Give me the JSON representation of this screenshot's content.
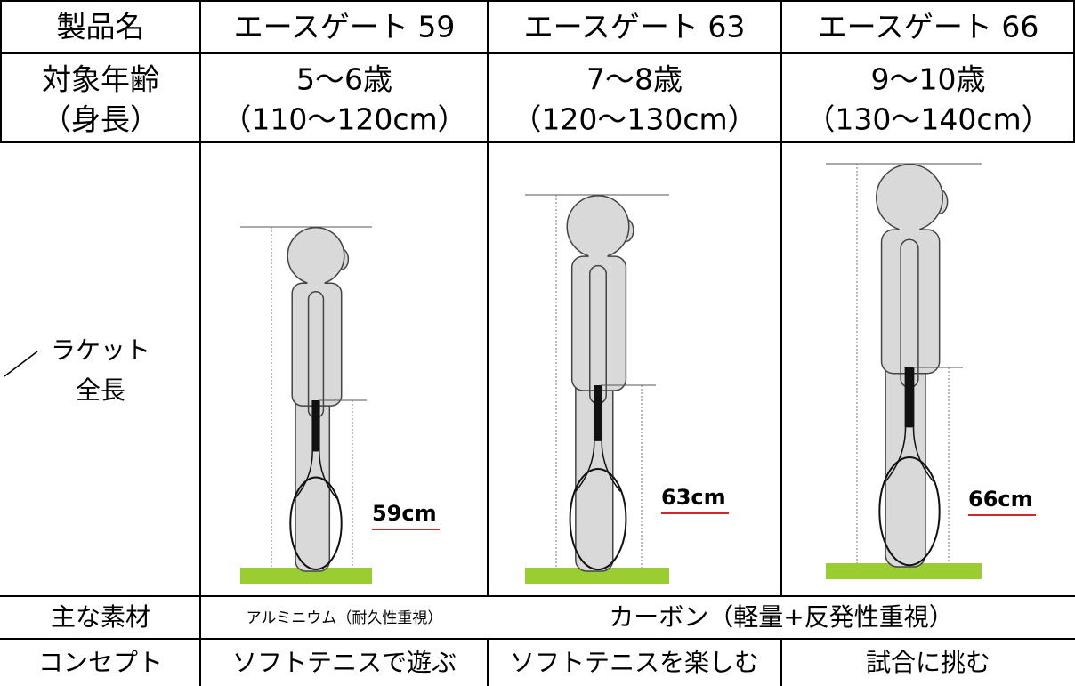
{
  "header": {
    "label": "製品名",
    "products": [
      "エースゲート 59",
      "エースゲート 63",
      "エースゲート 66"
    ]
  },
  "target": {
    "label_lines": [
      "対象年齢",
      "（身長）"
    ],
    "ages": [
      "5～6歳",
      "7～8歳",
      "9～10歳"
    ],
    "heights": [
      "（110～120cm）",
      "（120～130cm）",
      "（130～140cm）"
    ]
  },
  "illustration": {
    "label_lines": [
      "ラケット",
      "全長"
    ],
    "lengths": [
      "59cm",
      "63cm",
      "66cm"
    ]
  },
  "material": {
    "label": "主な素材",
    "values": [
      "アルミニウム（耐久性重視）",
      "カーボン（軽量+反発性重視）"
    ]
  },
  "concept": {
    "label": "コンセプト",
    "values": [
      "ソフトテニスで遊ぶ",
      "ソフトテニスを楽しむ",
      "試合に挑む"
    ]
  }
}
